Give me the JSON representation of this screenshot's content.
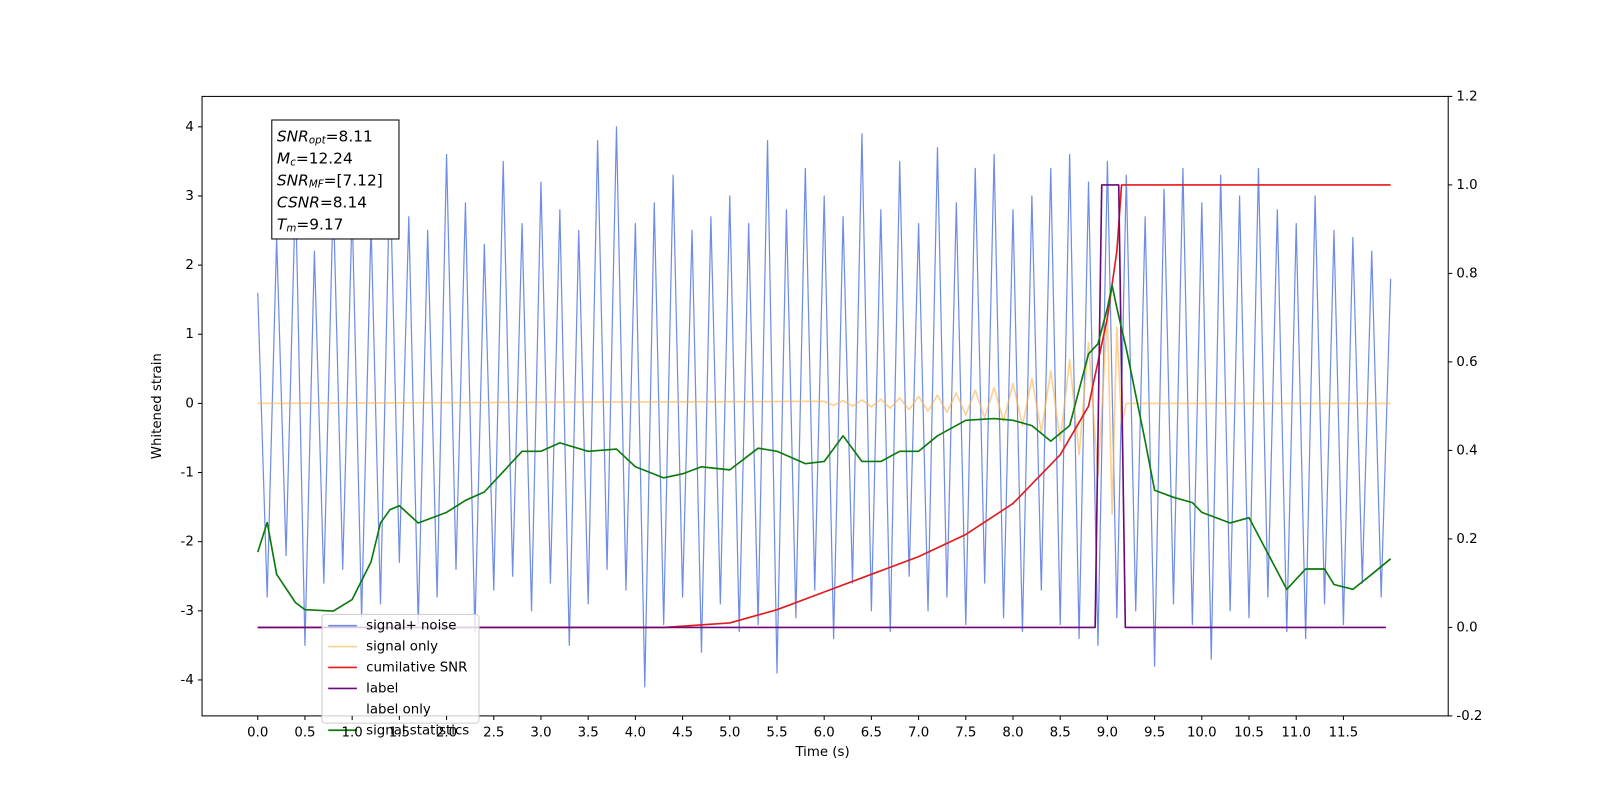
{
  "chart_data": {
    "type": "line",
    "xlabel": "Time (s)",
    "ylabel": "Whitened strain",
    "xlim": [
      -0.59,
      12.61
    ],
    "ylim": [
      -4.52,
      4.44
    ],
    "y2lim": [
      -0.2,
      1.2
    ],
    "xticks": [
      {
        "value": 0,
        "label": "0.0"
      },
      0.5,
      {
        "value": 1,
        "label": "1.0"
      },
      1.5,
      {
        "value": 2,
        "label": "2.0"
      },
      2.5,
      {
        "value": 3,
        "label": "3.0"
      },
      3.5,
      {
        "value": 4,
        "label": "4.0"
      },
      4.5,
      {
        "value": 5,
        "label": "5.0"
      },
      5.5,
      {
        "value": 6,
        "label": "6.0"
      },
      6.5,
      {
        "value": 7,
        "label": "7.0"
      },
      7.5,
      {
        "value": 8,
        "label": "8.0"
      },
      8.5,
      {
        "value": 9,
        "label": "9.0"
      },
      9.5,
      {
        "value": 10,
        "label": "10.0"
      },
      10.5,
      {
        "value": 11,
        "label": "11.0"
      },
      11.5
    ],
    "yticks": [
      -4,
      -3,
      -2,
      -1,
      0,
      1,
      2,
      3,
      4
    ],
    "y2ticks": [
      -0.2,
      {
        "value": 0,
        "label": "0.0"
      },
      0.2,
      0.4,
      0.6,
      0.8,
      {
        "value": 1,
        "label": "1.0"
      },
      1.2
    ],
    "annotation": [
      {
        "name": "SNR",
        "sub": "opt",
        "text": "=8.11"
      },
      {
        "name": "M",
        "sub": "c",
        "text": "=12.24"
      },
      {
        "name": "SNR",
        "sub": "MF",
        "text": "=[7.12]"
      },
      {
        "name": "CSNR",
        "sub": "",
        "text": "=8.14"
      },
      {
        "name": "T",
        "sub": "m",
        "text": "=9.17"
      }
    ],
    "series": [
      {
        "name": "signal+ noise",
        "color": "#6f8de6",
        "x": [
          0,
          0.1,
          0.2,
          0.3,
          0.4,
          0.5,
          0.6,
          0.7,
          0.8,
          0.9,
          1,
          1.1,
          1.2,
          1.3,
          1.4,
          1.5,
          1.6,
          1.7,
          1.8,
          1.9,
          2,
          2.1,
          2.2,
          2.3,
          2.4,
          2.5,
          2.6,
          2.7,
          2.8,
          2.9,
          3,
          3.1,
          3.2,
          3.3,
          3.4,
          3.5,
          3.6,
          3.7,
          3.8,
          3.9,
          4,
          4.1,
          4.2,
          4.3,
          4.4,
          4.5,
          4.6,
          4.7,
          4.8,
          4.9,
          5,
          5.1,
          5.2,
          5.3,
          5.4,
          5.5,
          5.6,
          5.7,
          5.8,
          5.9,
          6,
          6.1,
          6.2,
          6.3,
          6.4,
          6.5,
          6.6,
          6.7,
          6.8,
          6.9,
          7,
          7.1,
          7.2,
          7.3,
          7.4,
          7.5,
          7.6,
          7.7,
          7.8,
          7.9,
          8,
          8.1,
          8.2,
          8.3,
          8.4,
          8.5,
          8.6,
          8.7,
          8.8,
          8.9,
          9,
          9.1,
          9.2,
          9.3,
          9.4,
          9.5,
          9.6,
          9.7,
          9.8,
          9.9,
          10,
          10.1,
          10.2,
          10.3,
          10.4,
          10.5,
          10.6,
          10.7,
          10.8,
          10.9,
          11,
          11.1,
          11.2,
          11.3,
          11.4,
          11.5,
          11.6,
          11.7,
          11.8,
          11.9,
          12
        ],
        "values": [
          1.6,
          -2.8,
          2.4,
          -2.2,
          3.1,
          -3.5,
          2.2,
          -2.6,
          3.0,
          -2.4,
          2.8,
          -3.1,
          2.6,
          -2.9,
          3.4,
          -2.3,
          2.7,
          -3.2,
          2.5,
          -2.8,
          3.6,
          -2.4,
          2.9,
          -3.3,
          2.3,
          -2.7,
          3.5,
          -2.5,
          2.6,
          -3.0,
          3.2,
          -2.6,
          2.8,
          -3.5,
          2.5,
          -2.9,
          3.8,
          -2.4,
          4.0,
          -2.7,
          2.6,
          -4.1,
          2.9,
          -3.2,
          3.3,
          -2.8,
          2.5,
          -3.6,
          2.7,
          -2.9,
          3.0,
          -3.3,
          2.6,
          -3.2,
          3.8,
          -3.9,
          2.8,
          -3.1,
          3.4,
          -2.7,
          3.0,
          -3.4,
          2.7,
          -2.6,
          3.9,
          -3.0,
          2.8,
          -3.3,
          3.5,
          -2.5,
          2.6,
          -3.0,
          3.7,
          -2.8,
          2.9,
          -3.2,
          3.4,
          -2.6,
          3.6,
          -3.1,
          2.8,
          -3.3,
          3.0,
          -2.7,
          3.4,
          -3.2,
          3.6,
          -3.4,
          3.2,
          -3.5,
          3.5,
          -3.1,
          3.3,
          -3.0,
          2.7,
          -3.8,
          3.1,
          -2.9,
          3.4,
          -3.2,
          2.9,
          -3.7,
          3.3,
          -3.0,
          3.0,
          -3.1,
          3.4,
          -2.8,
          2.8,
          -3.3,
          2.6,
          -3.4,
          3.0,
          -2.9,
          2.5,
          -3.2,
          2.4,
          -2.6,
          2.2,
          -2.8,
          1.8
        ]
      },
      {
        "name": "signal only",
        "color": "#ffb347",
        "x": [
          0,
          6.0,
          6.1,
          6.2,
          6.3,
          6.4,
          6.5,
          6.6,
          6.7,
          6.8,
          6.9,
          7.0,
          7.1,
          7.2,
          7.3,
          7.4,
          7.5,
          7.6,
          7.7,
          7.8,
          7.9,
          8.0,
          8.1,
          8.2,
          8.3,
          8.4,
          8.5,
          8.6,
          8.7,
          8.8,
          8.9,
          9.0,
          9.05,
          9.1,
          9.15,
          9.2,
          12.0
        ],
        "values": [
          0,
          0.03,
          -0.03,
          0.04,
          -0.04,
          0.05,
          -0.05,
          0.06,
          -0.07,
          0.08,
          -0.09,
          0.1,
          -0.11,
          0.12,
          -0.13,
          0.15,
          -0.17,
          0.19,
          -0.21,
          0.23,
          -0.26,
          0.29,
          -0.32,
          0.36,
          -0.41,
          0.47,
          -0.54,
          0.63,
          -0.74,
          0.88,
          -1.05,
          1.3,
          -1.6,
          1.1,
          -0.3,
          0,
          0
        ]
      },
      {
        "name": "cumilative SNR",
        "color": "#e31a1c",
        "axis": "y2",
        "x": [
          0,
          4.3,
          5.0,
          5.5,
          6.0,
          6.5,
          7.0,
          7.5,
          8.0,
          8.5,
          8.8,
          9.0,
          9.1,
          9.15,
          12.0
        ],
        "values": [
          0,
          0,
          0.01,
          0.04,
          0.08,
          0.12,
          0.16,
          0.21,
          0.28,
          0.39,
          0.5,
          0.7,
          0.85,
          1.0,
          1.0
        ]
      },
      {
        "name": "label",
        "color": "#6a0a7a",
        "axis": "y2",
        "x": [
          0,
          8.87,
          8.94,
          9.12,
          9.19,
          11.95
        ],
        "values": [
          0,
          0,
          1,
          1,
          0,
          0
        ]
      },
      {
        "name": "label only",
        "color": "#ffffff",
        "axis": "y2",
        "x": [],
        "values": []
      },
      {
        "name": "signal statistics",
        "color": "#0a7a0a",
        "axis": "y2",
        "x": [
          0,
          0.1,
          0.2,
          0.4,
          0.5,
          0.8,
          1.0,
          1.2,
          1.3,
          1.4,
          1.5,
          1.7,
          2.0,
          2.2,
          2.4,
          2.6,
          2.8,
          3.0,
          3.2,
          3.5,
          3.8,
          4.0,
          4.3,
          4.5,
          4.7,
          5.0,
          5.3,
          5.5,
          5.8,
          6.0,
          6.2,
          6.4,
          6.6,
          6.8,
          7.0,
          7.2,
          7.5,
          7.8,
          8.0,
          8.2,
          8.4,
          8.6,
          8.8,
          8.9,
          9.0,
          9.05,
          9.1,
          9.2,
          9.4,
          9.5,
          9.7,
          9.9,
          10.0,
          10.3,
          10.5,
          10.7,
          10.9,
          11.1,
          11.3,
          11.4,
          11.6,
          11.8,
          12.0
        ],
        "values": [
          0.17,
          0.237,
          0.12,
          0.056,
          0.04,
          0.037,
          0.063,
          0.148,
          0.236,
          0.266,
          0.275,
          0.236,
          0.26,
          0.287,
          0.306,
          0.352,
          0.398,
          0.398,
          0.417,
          0.398,
          0.403,
          0.363,
          0.338,
          0.347,
          0.363,
          0.356,
          0.405,
          0.398,
          0.37,
          0.375,
          0.433,
          0.375,
          0.375,
          0.398,
          0.398,
          0.433,
          0.468,
          0.472,
          0.468,
          0.456,
          0.421,
          0.456,
          0.618,
          0.641,
          0.722,
          0.773,
          0.722,
          0.63,
          0.421,
          0.31,
          0.294,
          0.282,
          0.26,
          0.236,
          0.248,
          0.167,
          0.086,
          0.132,
          0.132,
          0.097,
          0.086,
          0.12,
          0.155
        ]
      }
    ]
  }
}
